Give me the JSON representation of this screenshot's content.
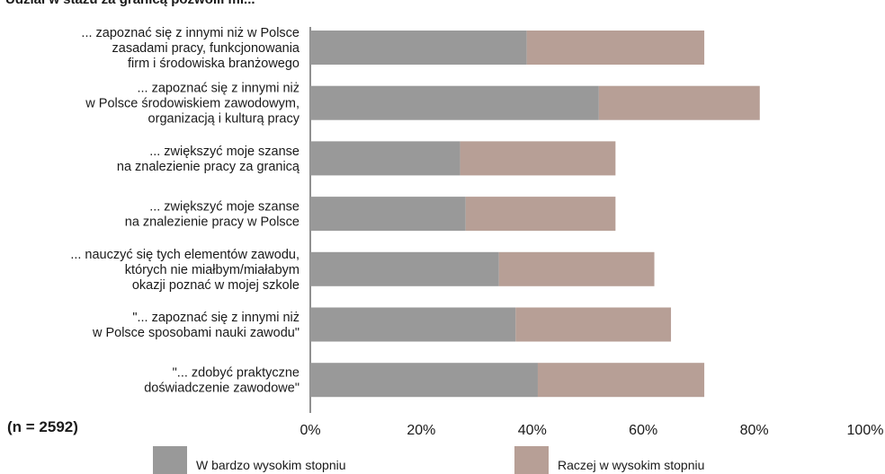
{
  "chart_data": {
    "type": "bar",
    "orientation": "horizontal",
    "stacked": true,
    "title": "Udział w stażu za granicą pozwolił mi...",
    "note": "(n = 2592)",
    "categories": [
      [
        "... zapoznać się z innymi niż w Polsce",
        "zasadami pracy, funkcjonowania",
        "firm i środowiska branżowego"
      ],
      [
        "... zapoznać się z innymi niż",
        "w Polsce środowiskiem zawodowym,",
        "organizacją i kulturą pracy"
      ],
      [
        "... zwiększyć moje szanse",
        "na znalezienie pracy za granicą"
      ],
      [
        "... zwiększyć moje szanse",
        "na znalezienie pracy w Polsce"
      ],
      [
        "... nauczyć się tych elementów zawodu,",
        "których nie miałbym/miałabym",
        "okazji poznać w mojej szkole"
      ],
      [
        "\"... zapoznać się z innymi niż",
        "w Polsce sposobami nauki zawodu\""
      ],
      [
        "\"... zdobyć praktyczne",
        "doświadczenie zawodowe\""
      ]
    ],
    "series": [
      {
        "name": "W bardzo wysokim stopniu",
        "color": "#999999",
        "values": [
          39,
          52,
          27,
          28,
          34,
          37,
          41
        ]
      },
      {
        "name": "Raczej w wysokim stopniu",
        "color": "#b79f96",
        "values": [
          32,
          29,
          28,
          27,
          28,
          28,
          30
        ]
      }
    ],
    "xlim": [
      0,
      100
    ],
    "xticks": [
      "0%",
      "20%",
      "40%",
      "60%",
      "80%",
      "100%"
    ],
    "grid": false,
    "legend_position": "bottom"
  }
}
